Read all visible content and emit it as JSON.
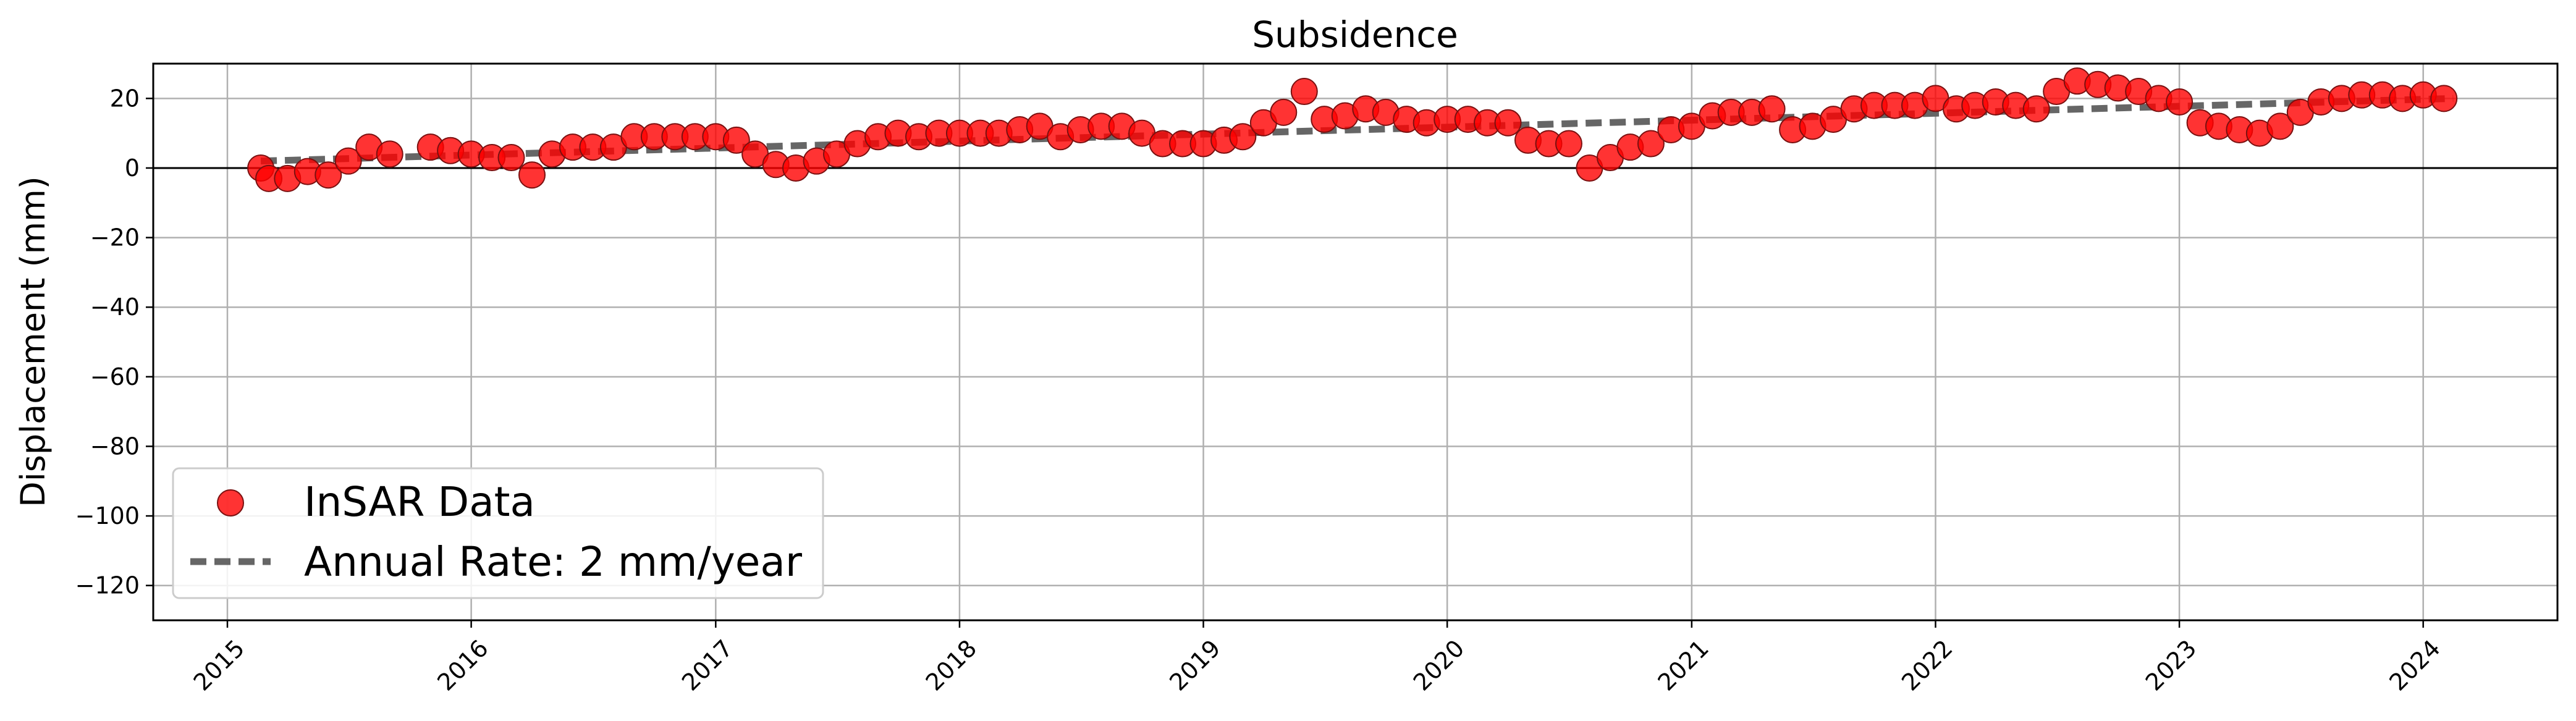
{
  "chart_data": {
    "type": "scatter",
    "title": "Subsidence",
    "xlabel": "",
    "ylabel": "Displacement (mm)",
    "xlim": [
      "2014-09-12",
      "2024-07-20"
    ],
    "ylim": [
      -130,
      30
    ],
    "x_ticks": [
      "2015",
      "2016",
      "2017",
      "2018",
      "2019",
      "2020",
      "2021",
      "2022",
      "2023",
      "2024"
    ],
    "y_ticks": [
      20,
      0,
      -20,
      -40,
      -60,
      -80,
      -100,
      -120
    ],
    "grid": true,
    "zero_line": true,
    "legend": {
      "placement": "lower-left"
    },
    "colors": {
      "points": "#ff0000",
      "point_edge": "#7a1010",
      "trend": "#666666",
      "grid": "#b0b0b0"
    },
    "series": [
      {
        "name": "InSAR Data",
        "kind": "scatter",
        "x": [
          "2015-02-20",
          "2015-03-04",
          "2015-04-01",
          "2015-05-01",
          "2015-06-01",
          "2015-07-01",
          "2015-08-01",
          "2015-09-01",
          "2015-11-01",
          "2015-12-01",
          "2016-01-01",
          "2016-02-01",
          "2016-03-01",
          "2016-04-01",
          "2016-05-01",
          "2016-06-01",
          "2016-07-01",
          "2016-08-01",
          "2016-09-01",
          "2016-10-01",
          "2016-11-01",
          "2016-12-01",
          "2017-01-01",
          "2017-02-01",
          "2017-03-01",
          "2017-04-01",
          "2017-05-01",
          "2017-06-01",
          "2017-07-01",
          "2017-08-01",
          "2017-09-01",
          "2017-10-01",
          "2017-11-01",
          "2017-12-01",
          "2018-01-01",
          "2018-02-01",
          "2018-03-01",
          "2018-04-01",
          "2018-05-01",
          "2018-06-01",
          "2018-07-01",
          "2018-08-01",
          "2018-09-01",
          "2018-10-01",
          "2018-11-01",
          "2018-12-01",
          "2019-01-01",
          "2019-02-01",
          "2019-03-01",
          "2019-04-01",
          "2019-05-01",
          "2019-06-01",
          "2019-07-01",
          "2019-08-01",
          "2019-09-01",
          "2019-10-01",
          "2019-11-01",
          "2019-12-01",
          "2020-01-01",
          "2020-02-01",
          "2020-03-01",
          "2020-04-01",
          "2020-05-01",
          "2020-06-01",
          "2020-07-01",
          "2020-08-01",
          "2020-09-01",
          "2020-10-01",
          "2020-11-01",
          "2020-12-01",
          "2021-01-01",
          "2021-02-01",
          "2021-03-01",
          "2021-04-01",
          "2021-05-01",
          "2021-06-01",
          "2021-07-01",
          "2021-08-01",
          "2021-09-01",
          "2021-10-01",
          "2021-11-01",
          "2021-12-01",
          "2022-01-01",
          "2022-02-01",
          "2022-03-01",
          "2022-04-01",
          "2022-05-01",
          "2022-06-01",
          "2022-07-01",
          "2022-08-01",
          "2022-09-01",
          "2022-10-01",
          "2022-11-01",
          "2022-12-01",
          "2023-01-01",
          "2023-02-01",
          "2023-03-01",
          "2023-04-01",
          "2023-05-01",
          "2023-06-01",
          "2023-07-01",
          "2023-08-01",
          "2023-09-01",
          "2023-10-01",
          "2023-11-01",
          "2023-12-01",
          "2024-01-01",
          "2024-02-01"
        ],
        "y": [
          0,
          -3,
          -3,
          -1,
          -2,
          2,
          6,
          4,
          6,
          5,
          4,
          3,
          3,
          -2,
          4,
          6,
          6,
          6,
          9,
          9,
          9,
          9,
          9,
          8,
          4,
          1,
          0,
          2,
          4,
          7,
          9,
          10,
          9,
          10,
          10,
          10,
          10,
          11,
          12,
          9,
          11,
          12,
          12,
          10,
          7,
          7,
          7,
          8,
          9,
          13,
          16,
          22,
          14,
          15,
          17,
          16,
          14,
          13,
          14,
          14,
          13,
          13,
          8,
          7,
          7,
          0,
          3,
          6,
          7,
          11,
          12,
          15,
          16,
          16,
          17,
          11,
          12,
          14,
          17,
          18,
          18,
          18,
          20,
          17,
          18,
          19,
          18,
          17,
          22,
          25,
          24,
          23,
          22,
          20,
          19,
          13,
          12,
          11,
          10,
          12,
          16,
          19,
          20,
          21,
          21,
          20,
          21,
          20
        ]
      },
      {
        "name": "Annual Rate: 2 mm/year",
        "kind": "trend-line",
        "x": [
          "2015-02-20",
          "2024-02-15"
        ],
        "y": [
          2,
          20
        ]
      }
    ]
  }
}
